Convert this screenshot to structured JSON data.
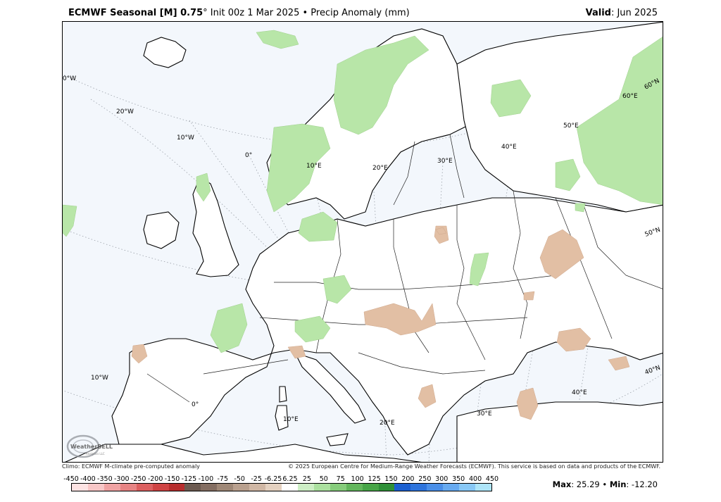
{
  "title": {
    "model": "ECMWF Seasonal [M] 0.75",
    "degree": "°",
    "rest": " Init 00z 1 Mar 2025 • Precip Anomaly (mm)",
    "valid_label": "Valid",
    "valid_value": ": Jun 2025"
  },
  "credits": {
    "left": "Climo: ECMWF M-climate pre-computed anomaly",
    "right": "© 2025 European Centre for Medium-Range Weather Forecasts (ECMWF). This service is based on data and products of the ECMWF."
  },
  "logo": {
    "text": "WeatherBELL",
    "sub": "Analytics LLC",
    "icon": "weatherbell-logo-icon"
  },
  "stats": {
    "max_label": "Max",
    "max_value": ": 25.29 • ",
    "min_label": "Min",
    "min_value": ": -12.20"
  },
  "colorbar": {
    "labels": [
      "-450",
      "-400",
      "-350",
      "-300",
      "-250",
      "-200",
      "-150",
      "-125",
      "-100",
      "-75",
      "-50",
      "-25",
      "-6.25",
      "6.25",
      "25",
      "50",
      "75",
      "100",
      "125",
      "150",
      "200",
      "250",
      "300",
      "350",
      "400",
      "450"
    ],
    "colors": [
      "#fde3e3",
      "#f8c7c7",
      "#f0a3a3",
      "#e78484",
      "#dc6060",
      "#cf4444",
      "#b72e2e",
      "#6c5a50",
      "#846e62",
      "#9f8877",
      "#b9a08e",
      "#d0b7a4",
      "#e4d1c0",
      "#ffffff",
      "#cdeec5",
      "#abe09f",
      "#86cc7b",
      "#63b65c",
      "#47a547",
      "#2f9038",
      "#1b5fd0",
      "#2e74dc",
      "#4a8fe8",
      "#67aaf0",
      "#88c8f6",
      "#aee5f9"
    ]
  },
  "map": {
    "meridian_labels": [
      "0°W",
      "20°W",
      "10°W",
      "0°",
      "10°E",
      "20°E",
      "30°E",
      "40°E",
      "50°E",
      "60°E",
      "10°W",
      "0°",
      "10°E",
      "20°E",
      "30°E",
      "40°E"
    ],
    "parallel_labels": [
      "60°N",
      "50°N",
      "40°N"
    ],
    "colors": {
      "background": "#f3f7fc",
      "wet_anomaly": "#b8e6a8",
      "dry_anomaly": "#e2bfa4",
      "coastline": "#000000",
      "border": "#222222",
      "graticule": "#9aa0a8"
    }
  }
}
